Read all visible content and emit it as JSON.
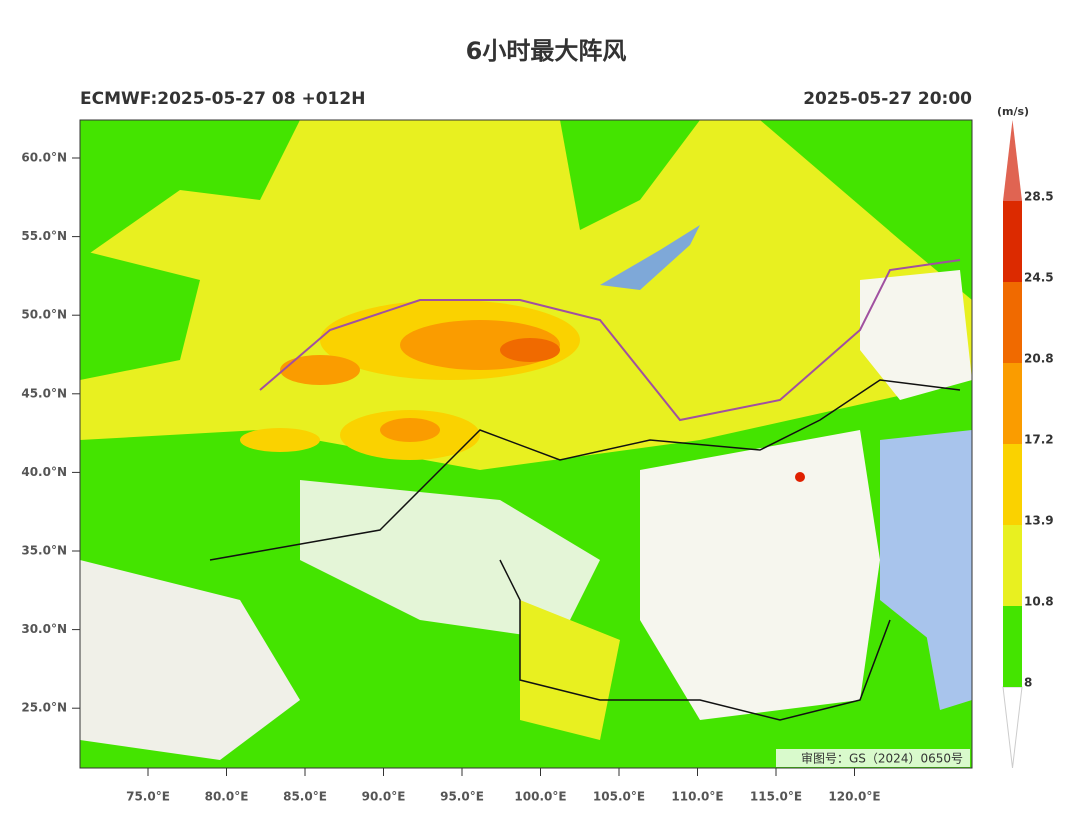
{
  "title": "6小时最大阵风",
  "model_run": "ECMWF:2025-05-27 08 +012H",
  "valid_time": "2025-05-27 20:00",
  "latitude_labels": [
    "60.0°N",
    "55.0°N",
    "50.0°N",
    "45.0°N",
    "40.0°N",
    "35.0°N",
    "30.0°N",
    "25.0°N"
  ],
  "longitude_labels": [
    "75.0°E",
    "80.0°E",
    "85.0°E",
    "90.0°E",
    "95.0°E",
    "100.0°E",
    "105.0°E",
    "110.0°E",
    "115.0°E",
    "120.0°E"
  ],
  "colorbar": {
    "unit": "(m/s)",
    "levels": [
      8,
      10.8,
      13.9,
      17.2,
      20.8,
      24.5,
      28.5
    ],
    "colors": [
      "#44e400",
      "#e8f020",
      "#fad200",
      "#fa9c00",
      "#f06a00",
      "#dc2a00"
    ],
    "over_color": "#e06452"
  },
  "map_note": "审图号：GS（2024）0650号"
}
